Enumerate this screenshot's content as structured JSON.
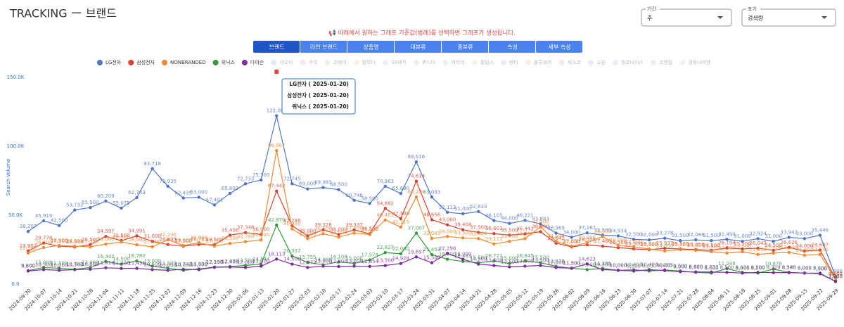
{
  "header": {
    "title": "TRACKING ー 브랜드"
  },
  "filters": [
    {
      "label": "기간",
      "value": "주"
    },
    {
      "label": "표기",
      "value": "검색량"
    }
  ],
  "notice": "📢 아래에서 원하는 그래프 기준값(범례)를 선택하면 그래프가 생성됩니다.",
  "tabs": [
    "브랜드",
    "라인 브랜드",
    "상품명",
    "대분류",
    "중분류",
    "속성",
    "세부 속성"
  ],
  "tooltip": [
    "LG전자 ( 2025-01-20)",
    "삼성전자 ( 2025-01-20)",
    "위닉스 ( 2025-01-20)"
  ],
  "chart_data": {
    "type": "line",
    "y_label": "Search Volume",
    "ylim": [
      0,
      155000
    ],
    "yticks": [
      {
        "value": 0,
        "label": "0.0"
      },
      {
        "value": 50000,
        "label": "50.0K"
      },
      {
        "value": 100000,
        "label": "100.0K"
      },
      {
        "value": 150000,
        "label": "150.0K"
      }
    ],
    "grid": false,
    "legend": "top",
    "x": [
      "2024-09-30",
      "2024-10-07",
      "2024-10-14",
      "2024-10-21",
      "2024-10-28",
      "2024-11-04",
      "2024-11-11",
      "2024-11-18",
      "2024-11-25",
      "2024-12-02",
      "2024-12-09",
      "2024-12-16",
      "2024-12-23",
      "2024-12-30",
      "2025-01-06",
      "2025-01-13",
      "2025-01-20",
      "2025-01-27",
      "2025-02-03",
      "2025-02-10",
      "2025-02-17",
      "2025-02-24",
      "2025-03-03",
      "2025-03-10",
      "2025-03-17",
      "2025-03-24",
      "2025-03-31",
      "2025-04-07",
      "2025-04-14",
      "2025-04-21",
      "2025-04-28",
      "2025-05-05",
      "2025-05-12",
      "2025-05-19",
      "2025-05-26",
      "2025-06-02",
      "2025-06-09",
      "2025-06-16",
      "2025-06-23",
      "2025-06-30",
      "2025-07-07",
      "2025-07-14",
      "2025-07-21",
      "2025-07-28",
      "2025-08-04",
      "2025-08-11",
      "2025-08-18",
      "2025-08-25",
      "2025-09-01",
      "2025-09-08",
      "2025-09-15",
      "2025-09-22",
      "2025-09-29"
    ],
    "series": [
      {
        "name": "LG전자",
        "color": "#4f74c9",
        "values": [
          38207,
          45919,
          42500,
          53732,
          55500,
          60209,
          55075,
          62743,
          83718,
          70935,
          62435,
          63000,
          57401,
          65802,
          72733,
          75500,
          122000,
          72745,
          69000,
          69983,
          68500,
          60746,
          58500,
          70963,
          65690,
          88616,
          63093,
          52112,
          51000,
          52633,
          46105,
          44000,
          46221,
          43683,
          36969,
          34000,
          37167,
          35500,
          34934,
          32500,
          32000,
          33278,
          31500,
          32088,
          31500,
          32490,
          31000,
          32924,
          31000,
          33942,
          33000,
          35446,
          5500
        ],
        "value_labels": [
          "38,207",
          "45,919",
          "42,500",
          "53,732",
          "55,500",
          "60,209",
          "55,075",
          "62,743",
          "83,718",
          "70,935",
          "62,435",
          "63,000",
          "57,401",
          "65,802",
          "72,733",
          "75,500",
          "122,000",
          "72,745",
          "69,000",
          "69,983",
          "68,500",
          "60,746",
          "58,500",
          "70,963",
          "65,690",
          "88,616",
          "63,093",
          "52,112",
          "51,000",
          "52,633",
          "46,105",
          "44,000",
          "46,221",
          "43,683",
          "36,969",
          "34,000",
          "37,167",
          "35,500",
          "34,934",
          "32,500",
          "32,000",
          "33,278",
          "31,500",
          "32,088",
          "31,500",
          "32,490",
          "31,000",
          "32,924",
          "31,000",
          "33,942",
          "33,000",
          "35,446",
          "5,500"
        ]
      },
      {
        "name": "삼성전자",
        "color": "#d8412f",
        "values": [
          23957,
          29778,
          27500,
          26938,
          28500,
          34597,
          31500,
          34991,
          31000,
          28699,
          27500,
          28763,
          28500,
          35456,
          37348,
          36000,
          67442,
          42298,
          35000,
          39328,
          36000,
          39337,
          36500,
          54882,
          47500,
          74614,
          46656,
          43000,
          39408,
          37500,
          36601,
          35500,
          36442,
          38000,
          29642,
          27000,
          28500,
          27466,
          26500,
          25500,
          25000,
          25937,
          25500,
          25056,
          24500,
          26194,
          25500,
          26043,
          24500,
          26626,
          24000,
          24667,
          4000
        ],
        "value_labels": [
          "23,957",
          "29,778",
          "27,500",
          "26,938",
          "28,500",
          "34,597",
          "31,500",
          "34,991",
          "31,000",
          "28,699",
          "27,500",
          "28,763",
          "28,500",
          "35,456",
          "37,348",
          "36,000",
          "67,442",
          "42,298",
          "35,000",
          "39,328",
          "36,000",
          "39,337",
          "36,500",
          "54,882",
          "47,500",
          "74,614",
          "46,656",
          "43,000",
          "39,408",
          "37,500",
          "36,601",
          "35,500",
          "36,442",
          "38,000",
          "29,642",
          "27,000",
          "28,500",
          "27,466",
          "26,500",
          "25,500",
          "25,000",
          "25,937",
          "25,500",
          "25,056",
          "24,500",
          "26,194",
          "25,500",
          "26,043",
          "24,500",
          "26,626",
          "24,000",
          "24,667",
          "4,000"
        ]
      },
      {
        "name": "NONBRANDED",
        "color": "#f18a2e",
        "values": [
          22500,
          26500,
          28000,
          27500,
          27000,
          29000,
          30500,
          28500,
          27000,
          32236,
          28000,
          30000,
          27500,
          29500,
          30766,
          32000,
          96867,
          40000,
          33000,
          36500,
          34000,
          37000,
          36000,
          46483,
          41315,
          63204,
          33085,
          34500,
          33500,
          33000,
          29111,
          31000,
          33000,
          41500,
          31000,
          27500,
          30000,
          34500,
          28000,
          27000,
          25500,
          24000,
          25000,
          24500,
          23500,
          22500,
          23500,
          21500,
          22500,
          23000,
          21000,
          21500,
          3500
        ],
        "value_labels": [
          "22,500",
          "26,500",
          "28,000",
          "27,500",
          "27,000",
          "29,000",
          "30,500",
          "28,500",
          "27,000",
          "32,236",
          "28,000",
          "30,000",
          "27,500",
          "29,500",
          "30,766",
          "32,000",
          "96,867",
          "40,000",
          "33,000",
          "36,500",
          "34,000",
          "37,000",
          "36,000",
          "46,483",
          "41,315",
          "63,204",
          "33,085",
          "34,500",
          "33,500",
          "33,000",
          "29,111",
          "31,000",
          "33,000",
          "41,500",
          "31,000",
          "27,500",
          "30,000",
          "34,500",
          "28,000",
          "27,000",
          "25,500",
          "24,000",
          "25,000",
          "24,500",
          "23,500",
          "22,500",
          "23,500",
          "21,500",
          "22,500",
          "23,000",
          "21,000",
          "21,500",
          "3,500"
        ]
      },
      {
        "name": "위닉스",
        "color": "#2e9a3b",
        "values": [
          9800,
          12005,
          11500,
          10742,
          12000,
          16442,
          14500,
          16780,
          13000,
          11500,
          10000,
          11000,
          12330,
          12678,
          13500,
          14544,
          42870,
          20337,
          15755,
          14000,
          16108,
          15000,
          17574,
          22827,
          22000,
          37007,
          21453,
          18000,
          16481,
          15500,
          16721,
          15000,
          16845,
          15500,
          12878,
          11500,
          10500,
          11285,
          10000,
          10403,
          9500,
          10265,
          9500,
          8500,
          8000,
          11248,
          8476,
          8000,
          10878,
          8500,
          8000,
          8000,
          1800
        ],
        "value_labels": [
          "9,800",
          "12,005",
          "11,500",
          "10,742",
          "12,000",
          "16,442",
          "14,500",
          "16,780",
          "13,000",
          "11,500",
          "10,000",
          "11,000",
          "12,330",
          "12,678",
          "13,500",
          "14,544",
          "42,870",
          "20,337",
          "15,755",
          "14,000",
          "16,108",
          "15,000",
          "17,574",
          "22,827",
          "22,000",
          "37,007",
          "21,453",
          "18,000",
          "16,481",
          "15,500",
          "16,721",
          "15,000",
          "16,845",
          "15,500",
          "12,878",
          "11,500",
          "10,500",
          "11,285",
          "10,000",
          "10,403",
          "9,500",
          "10,265",
          "9,500",
          "8,500",
          "8,000",
          "11,248",
          "8,476",
          "8,000",
          "10,878",
          "8,500",
          "8,000",
          "8,000",
          "1,800"
        ]
      },
      {
        "name": "다이슨",
        "color": "#7d2a9e",
        "values": [
          9500,
          10500,
          10000,
          10500,
          10800,
          11814,
          11400,
          11431,
          10500,
          10000,
          10747,
          10500,
          12198,
          12400,
          12000,
          13000,
          18113,
          14500,
          12072,
          13000,
          12800,
          13000,
          12854,
          13500,
          14928,
          19697,
          15500,
          22298,
          18000,
          14500,
          13500,
          12500,
          13000,
          13500,
          12000,
          11500,
          14623,
          10500,
          10000,
          9500,
          10403,
          9800,
          9000,
          8800,
          8733,
          8500,
          8000,
          8500,
          8329,
          8345,
          8000,
          7500,
          2000
        ],
        "value_labels": [
          "9,500",
          "10,500",
          "10,000",
          "10,500",
          "10,800",
          "11,814",
          "11,400",
          "11,431",
          "10,500",
          "10,000",
          "10,747",
          "10,500",
          "12,198",
          "12,400",
          "12,000",
          "13,000",
          "18,113",
          "14,500",
          "12,072",
          "13,000",
          "12,800",
          "13,000",
          "12,854",
          "13,500",
          "14,928",
          "19,697",
          "15,500",
          "22,298",
          "18,000",
          "14,500",
          "13,500",
          "12,500",
          "13,000",
          "13,500",
          "12,000",
          "11,500",
          "14,623",
          "10,500",
          "10,000",
          "9,500",
          "10,403",
          "9,800",
          "9,000",
          "8,800",
          "8,733",
          "8,500",
          "8,000",
          "8,500",
          "8,329",
          "8,345",
          "8,000",
          "7,500",
          "2,000"
        ]
      }
    ],
    "legend_inactive": [
      "샤오미",
      "쿠쿠",
      "코웨이",
      "발뮤다",
      "SK매직",
      "위니아",
      "캐리어",
      "필립스",
      "벤타",
      "블루에어",
      "세스코",
      "교원",
      "청호나이스",
      "코맨탑",
      "경동나비엔"
    ]
  }
}
